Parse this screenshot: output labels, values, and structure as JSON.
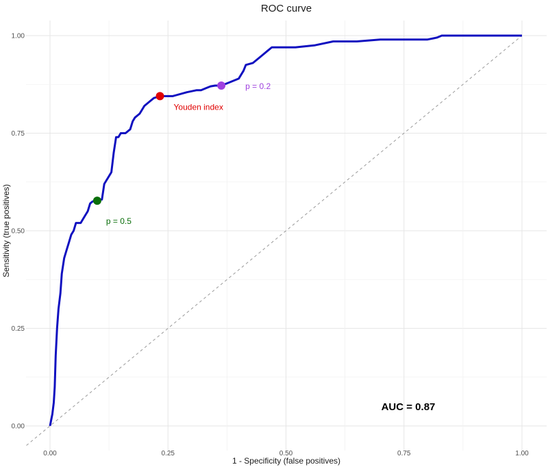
{
  "chart_data": {
    "type": "line",
    "title": "ROC curve",
    "xlabel": "1 - Specificity (false positives)",
    "ylabel": "Sensitivity (true positives)",
    "xlim": [
      0,
      1
    ],
    "ylim": [
      0,
      1
    ],
    "x_ticks": [
      "0.00",
      "0.25",
      "0.50",
      "0.75",
      "1.00"
    ],
    "y_ticks": [
      "0.00",
      "0.25",
      "0.50",
      "0.75",
      "1.00"
    ],
    "grid": true,
    "series": [
      {
        "color": "#1010c0",
        "x": [
          0.0,
          0.005,
          0.008,
          0.01,
          0.012,
          0.015,
          0.018,
          0.022,
          0.025,
          0.03,
          0.035,
          0.04,
          0.045,
          0.05,
          0.055,
          0.06,
          0.065,
          0.07,
          0.08,
          0.085,
          0.09,
          0.095,
          0.1,
          0.11,
          0.115,
          0.12,
          0.13,
          0.135,
          0.14,
          0.145,
          0.15,
          0.16,
          0.17,
          0.175,
          0.18,
          0.19,
          0.2,
          0.21,
          0.22,
          0.233,
          0.26,
          0.29,
          0.31,
          0.32,
          0.33,
          0.34,
          0.35,
          0.363,
          0.38,
          0.4,
          0.41,
          0.415,
          0.43,
          0.45,
          0.46,
          0.47,
          0.52,
          0.56,
          0.6,
          0.65,
          0.7,
          0.75,
          0.8,
          0.82,
          0.83,
          0.9,
          0.95,
          1.0
        ],
        "y": [
          0.0,
          0.03,
          0.06,
          0.1,
          0.18,
          0.25,
          0.3,
          0.34,
          0.39,
          0.43,
          0.45,
          0.47,
          0.49,
          0.5,
          0.52,
          0.52,
          0.52,
          0.53,
          0.55,
          0.57,
          0.575,
          0.577,
          0.58,
          0.58,
          0.62,
          0.63,
          0.65,
          0.7,
          0.74,
          0.74,
          0.75,
          0.75,
          0.76,
          0.78,
          0.79,
          0.8,
          0.82,
          0.83,
          0.84,
          0.845,
          0.845,
          0.855,
          0.86,
          0.86,
          0.865,
          0.87,
          0.872,
          0.872,
          0.88,
          0.89,
          0.91,
          0.925,
          0.93,
          0.95,
          0.96,
          0.97,
          0.97,
          0.975,
          0.985,
          0.985,
          0.99,
          0.99,
          0.99,
          0.995,
          1.0,
          1.0,
          1.0,
          1.0
        ]
      }
    ],
    "reference_line": {
      "x": [
        0,
        1
      ],
      "y": [
        0,
        1
      ],
      "color": "#999999"
    },
    "points": [
      {
        "label": "Youden index",
        "x": 0.233,
        "y": 0.845,
        "color": "#e00000"
      },
      {
        "label": "p = 0.2",
        "x": 0.363,
        "y": 0.872,
        "color": "#a040e0"
      },
      {
        "label": "p = 0.5",
        "x": 0.1,
        "y": 0.577,
        "color": "#0a6e0a"
      }
    ],
    "annotation": "AUC = 0.87"
  }
}
